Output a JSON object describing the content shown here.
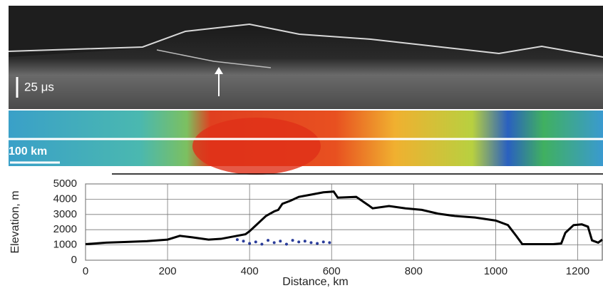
{
  "radargram": {
    "scale_label": "25 μs"
  },
  "map": {
    "scale_label": "100 km"
  },
  "chart_data": {
    "type": "line",
    "ylabel": "Elevation, m",
    "xlabel": "Distance, km",
    "xlim": [
      0,
      1260
    ],
    "ylim": [
      0,
      5000
    ],
    "xticks": [
      0,
      200,
      400,
      600,
      800,
      1000,
      1200
    ],
    "yticks": [
      0,
      1000,
      2000,
      3000,
      4000,
      5000
    ],
    "grid": true,
    "series": [
      {
        "type": "line",
        "color": "#000000",
        "x": [
          0,
          50,
          100,
          150,
          200,
          230,
          260,
          300,
          330,
          360,
          390,
          400,
          420,
          440,
          460,
          470,
          480,
          500,
          520,
          550,
          580,
          605,
          615,
          660,
          690,
          700,
          740,
          780,
          820,
          860,
          900,
          950,
          1000,
          1030,
          1050,
          1065,
          1100,
          1140,
          1160,
          1170,
          1190,
          1210,
          1225,
          1235,
          1250,
          1260
        ],
        "values": [
          1050,
          1150,
          1200,
          1250,
          1350,
          1600,
          1500,
          1350,
          1400,
          1550,
          1700,
          1900,
          2400,
          2900,
          3200,
          3300,
          3700,
          3900,
          4150,
          4300,
          4450,
          4500,
          4100,
          4150,
          3600,
          3400,
          3550,
          3400,
          3300,
          3050,
          2900,
          2800,
          2600,
          2300,
          1600,
          1050,
          1050,
          1050,
          1100,
          1800,
          2300,
          2350,
          2200,
          1300,
          1150,
          1350
        ]
      },
      {
        "type": "scatter",
        "color": "#2a3c9a",
        "x": [
          370,
          385,
          400,
          415,
          430,
          445,
          460,
          475,
          490,
          505,
          520,
          535,
          550,
          565,
          580,
          595
        ],
        "values": [
          1350,
          1250,
          1100,
          1200,
          1050,
          1300,
          1150,
          1250,
          1050,
          1300,
          1200,
          1250,
          1150,
          1100,
          1200,
          1150
        ]
      }
    ]
  }
}
